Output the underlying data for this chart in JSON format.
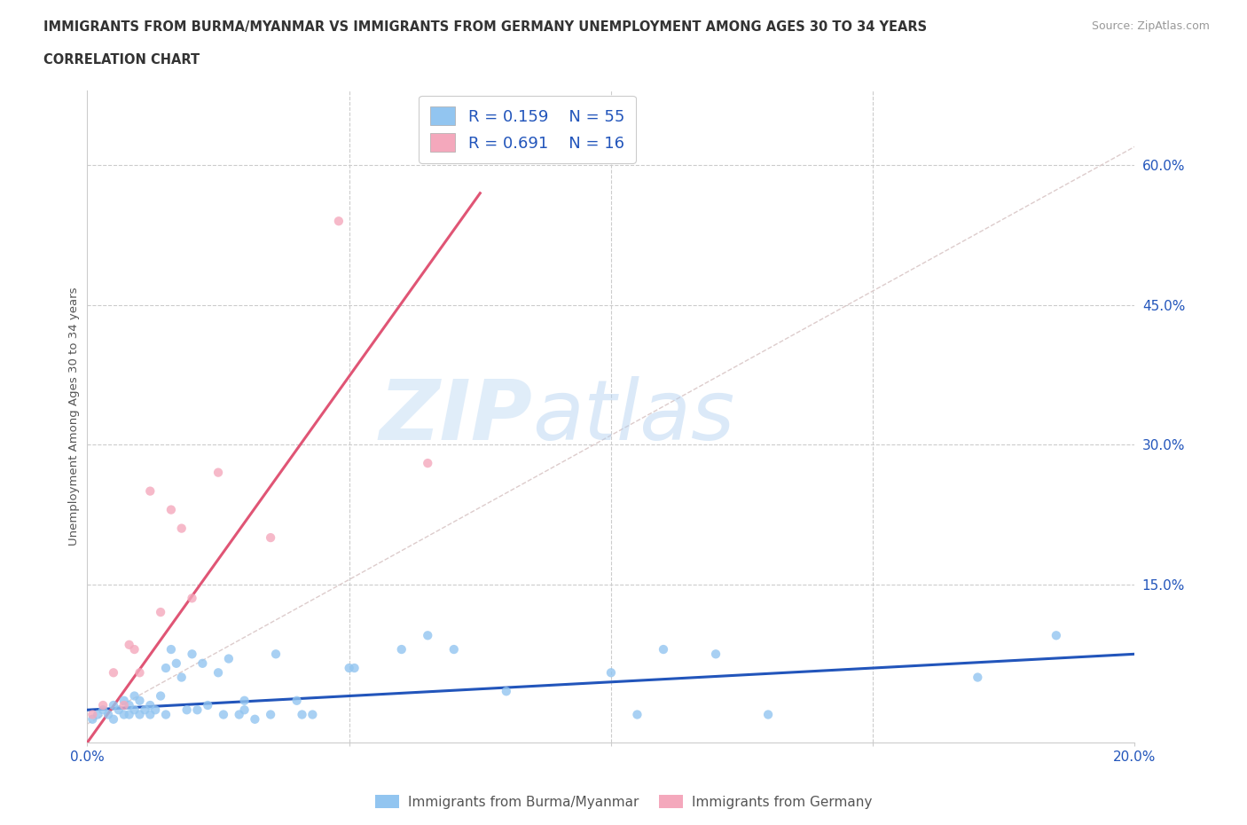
{
  "title_line1": "IMMIGRANTS FROM BURMA/MYANMAR VS IMMIGRANTS FROM GERMANY UNEMPLOYMENT AMONG AGES 30 TO 34 YEARS",
  "title_line2": "CORRELATION CHART",
  "source_text": "Source: ZipAtlas.com",
  "ylabel": "Unemployment Among Ages 30 to 34 years",
  "xlim": [
    0.0,
    0.2
  ],
  "ylim": [
    -0.02,
    0.68
  ],
  "ytick_positions": [
    0.15,
    0.3,
    0.45,
    0.6
  ],
  "ytick_labels": [
    "15.0%",
    "30.0%",
    "45.0%",
    "60.0%"
  ],
  "watermark_zip": "ZIP",
  "watermark_atlas": "atlas",
  "legend_label_blue": "Immigrants from Burma/Myanmar",
  "legend_label_pink": "Immigrants from Germany",
  "blue_color": "#92C5F0",
  "pink_color": "#F4A8BC",
  "blue_line_color": "#2255BB",
  "pink_line_color": "#E05575",
  "scatter_alpha": 0.8,
  "scatter_size": 55,
  "blue_x": [
    0.001,
    0.002,
    0.003,
    0.004,
    0.005,
    0.005,
    0.006,
    0.007,
    0.007,
    0.008,
    0.008,
    0.009,
    0.009,
    0.01,
    0.01,
    0.011,
    0.012,
    0.012,
    0.013,
    0.014,
    0.015,
    0.015,
    0.016,
    0.017,
    0.018,
    0.019,
    0.02,
    0.021,
    0.022,
    0.023,
    0.025,
    0.026,
    0.027,
    0.029,
    0.03,
    0.03,
    0.032,
    0.035,
    0.036,
    0.04,
    0.041,
    0.043,
    0.05,
    0.051,
    0.06,
    0.065,
    0.07,
    0.08,
    0.1,
    0.105,
    0.11,
    0.12,
    0.13,
    0.17,
    0.185
  ],
  "blue_y": [
    0.005,
    0.01,
    0.015,
    0.01,
    0.005,
    0.02,
    0.015,
    0.01,
    0.025,
    0.01,
    0.02,
    0.015,
    0.03,
    0.01,
    0.025,
    0.015,
    0.01,
    0.02,
    0.015,
    0.03,
    0.01,
    0.06,
    0.08,
    0.065,
    0.05,
    0.015,
    0.075,
    0.015,
    0.065,
    0.02,
    0.055,
    0.01,
    0.07,
    0.01,
    0.015,
    0.025,
    0.005,
    0.01,
    0.075,
    0.025,
    0.01,
    0.01,
    0.06,
    0.06,
    0.08,
    0.095,
    0.08,
    0.035,
    0.055,
    0.01,
    0.08,
    0.075,
    0.01,
    0.05,
    0.095
  ],
  "pink_x": [
    0.001,
    0.003,
    0.005,
    0.007,
    0.008,
    0.009,
    0.01,
    0.012,
    0.014,
    0.016,
    0.018,
    0.02,
    0.025,
    0.035,
    0.048,
    0.065
  ],
  "pink_y": [
    0.01,
    0.02,
    0.055,
    0.02,
    0.085,
    0.08,
    0.055,
    0.25,
    0.12,
    0.23,
    0.21,
    0.135,
    0.27,
    0.2,
    0.54,
    0.28
  ],
  "blue_trend_x": [
    0.0,
    0.2
  ],
  "blue_trend_y": [
    0.015,
    0.075
  ],
  "pink_trend_x": [
    0.0,
    0.075
  ],
  "pink_trend_y": [
    -0.02,
    0.57
  ],
  "diag_line_x": [
    0.0,
    0.2
  ],
  "diag_line_y": [
    0.0,
    0.62
  ]
}
